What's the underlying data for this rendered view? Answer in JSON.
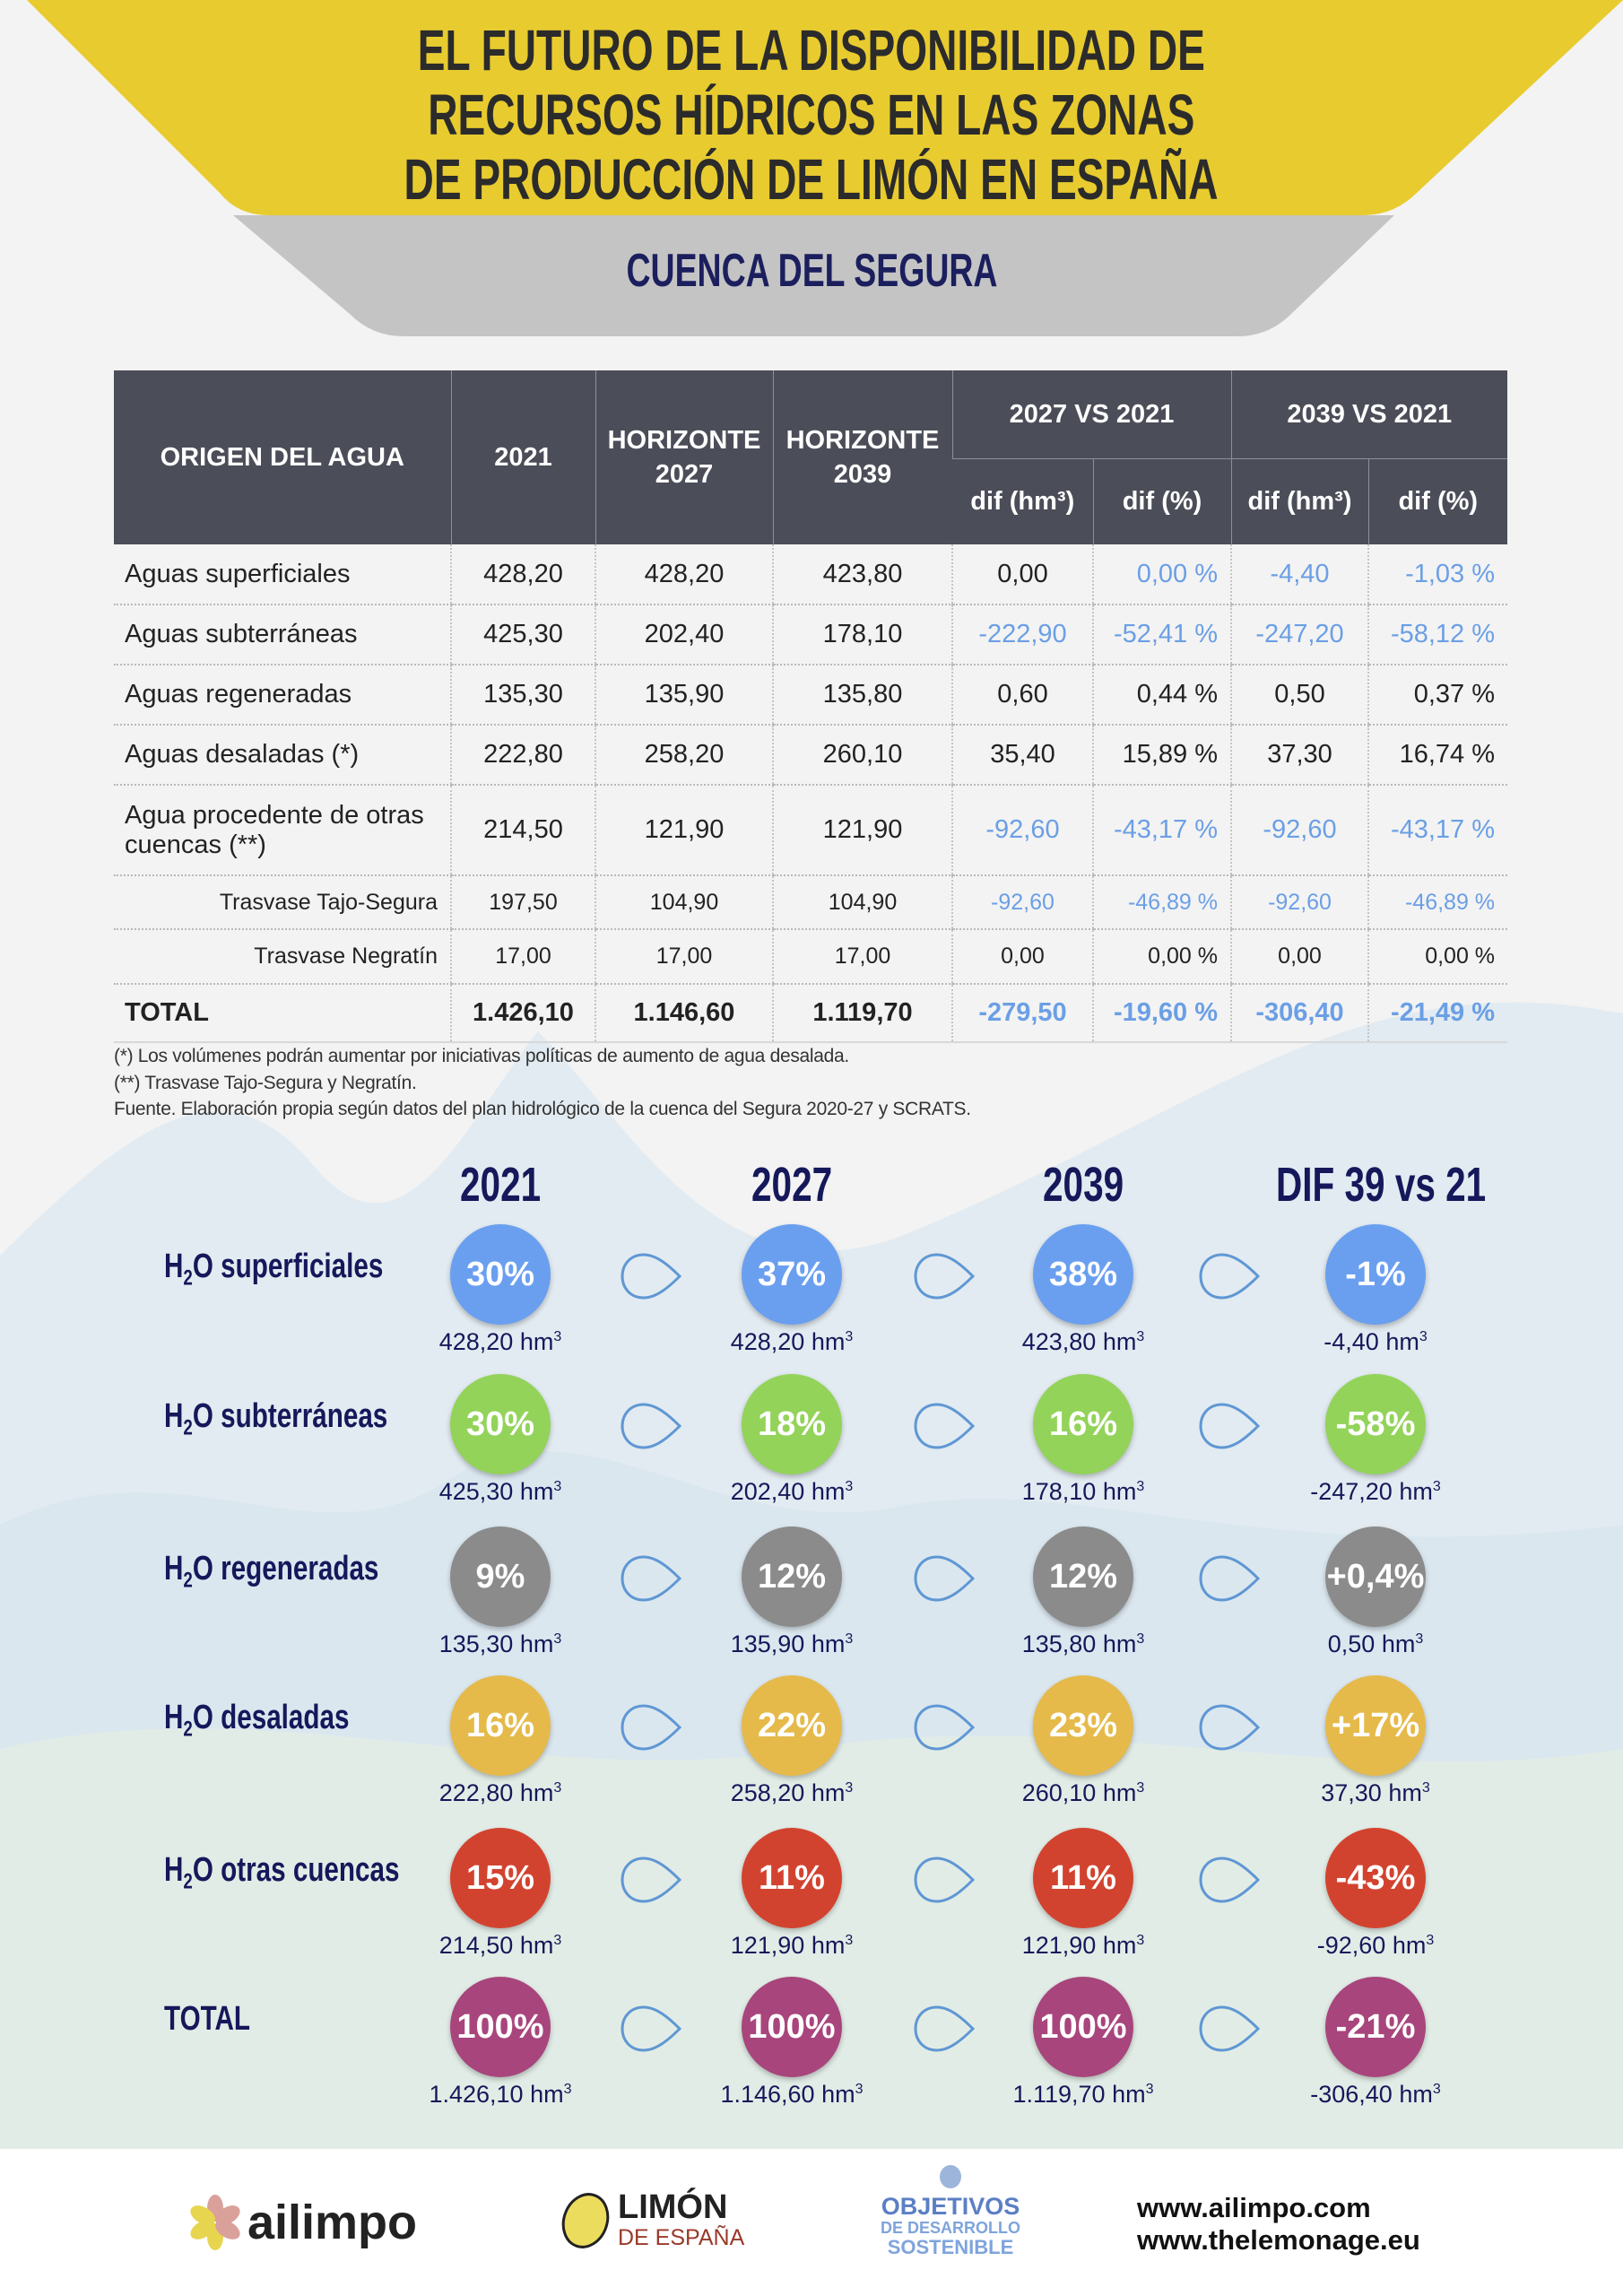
{
  "header": {
    "title_lines": [
      "EL FUTURO DE LA DISPONIBILIDAD DE",
      "RECURSOS HÍDRICOS EN LAS ZONAS",
      "DE PRODUCCIÓN DE LIMÓN EN ESPAÑA"
    ],
    "subtitle": "CUENCA DEL SEGURA",
    "colors": {
      "banner": "#e8cb2f",
      "subbanner": "#c4c4c4"
    }
  },
  "table": {
    "headers": {
      "origin": "ORIGEN DEL AGUA",
      "y2021": "2021",
      "h2027": "HORIZONTE 2027",
      "h2039": "HORIZONTE 2039",
      "cmp1": "2027 VS 2021",
      "cmp2": "2039 VS 2021",
      "dif_hm": "dif (hm³)",
      "dif_pct": "dif (%)"
    },
    "rows": [
      {
        "type": "main",
        "cells": [
          "Aguas superficiales",
          "428,20",
          "428,20",
          "423,80",
          "0,00",
          "0,00 %",
          "-4,40",
          "-1,03 %"
        ],
        "highlight": [
          false,
          false,
          false,
          false,
          false,
          true,
          true,
          true
        ]
      },
      {
        "type": "main",
        "cells": [
          "Aguas subterráneas",
          "425,30",
          "202,40",
          "178,10",
          "-222,90",
          "-52,41 %",
          "-247,20",
          "-58,12 %"
        ],
        "highlight": [
          false,
          false,
          false,
          false,
          true,
          true,
          true,
          true
        ]
      },
      {
        "type": "main",
        "cells": [
          "Aguas regeneradas",
          "135,30",
          "135,90",
          "135,80",
          "0,60",
          "0,44 %",
          "0,50",
          "0,37 %"
        ],
        "highlight": [
          false,
          false,
          false,
          false,
          false,
          false,
          false,
          false
        ]
      },
      {
        "type": "main",
        "cells": [
          "Aguas desaladas (*)",
          "222,80",
          "258,20",
          "260,10",
          "35,40",
          "15,89 %",
          "37,30",
          "16,74 %"
        ],
        "highlight": [
          false,
          false,
          false,
          false,
          false,
          false,
          false,
          false
        ]
      },
      {
        "type": "main",
        "cells": [
          "Agua procedente de otras cuencas (**)",
          "214,50",
          "121,90",
          "121,90",
          "-92,60",
          "-43,17 %",
          "-92,60",
          "-43,17 %"
        ],
        "highlight": [
          false,
          false,
          false,
          false,
          true,
          true,
          true,
          true
        ]
      },
      {
        "type": "sub",
        "cells": [
          "Trasvase Tajo-Segura",
          "197,50",
          "104,90",
          "104,90",
          "-92,60",
          "-46,89 %",
          "-92,60",
          "-46,89 %"
        ],
        "highlight": [
          false,
          false,
          false,
          false,
          true,
          true,
          true,
          true
        ]
      },
      {
        "type": "sub",
        "cells": [
          "Trasvase Negratín",
          "17,00",
          "17,00",
          "17,00",
          "0,00",
          "0,00 %",
          "0,00",
          "0,00 %"
        ],
        "highlight": [
          false,
          false,
          false,
          false,
          false,
          false,
          false,
          false
        ]
      },
      {
        "type": "total",
        "cells": [
          "TOTAL",
          "1.426,10",
          "1.146,60",
          "1.119,70",
          "-279,50",
          "-19,60 %",
          "-306,40",
          "-21,49 %"
        ],
        "highlight": [
          false,
          false,
          false,
          false,
          true,
          true,
          true,
          true
        ]
      }
    ],
    "footnotes": [
      "(*) Los volúmenes podrán aumentar por iniciativas políticas de aumento de agua desalada.",
      "(**) Trasvase Tajo-Segura y Negratín.",
      "Fuente. Elaboración propia según datos del plan hidrológico de la cuenca del Segura 2020-27 y SCRATS."
    ]
  },
  "infographic": {
    "columns": [
      "2021",
      "2027",
      "2039",
      "DIF 39 vs 21"
    ],
    "unit": "hm",
    "unit_sup": "3",
    "rows": [
      {
        "pre": "H",
        "sub": "2",
        "rest": "O superficiales",
        "color": "#6a9ff0",
        "values": [
          {
            "pct": "30%",
            "amt": "428,20"
          },
          {
            "pct": "37%",
            "amt": "428,20"
          },
          {
            "pct": "38%",
            "amt": "423,80"
          },
          {
            "pct": "-1%",
            "amt": "-4,40"
          }
        ]
      },
      {
        "pre": "H",
        "sub": "2",
        "rest": "O subterráneas",
        "color": "#93d35a",
        "values": [
          {
            "pct": "30%",
            "amt": "425,30"
          },
          {
            "pct": "18%",
            "amt": "202,40"
          },
          {
            "pct": "16%",
            "amt": "178,10"
          },
          {
            "pct": "-58%",
            "amt": "-247,20"
          }
        ]
      },
      {
        "pre": "H",
        "sub": "2",
        "rest": "O regeneradas",
        "color": "#8b8b8b",
        "values": [
          {
            "pct": "9%",
            "amt": "135,30"
          },
          {
            "pct": "12%",
            "amt": "135,90"
          },
          {
            "pct": "12%",
            "amt": "135,80"
          },
          {
            "pct": "+0,4%",
            "amt": "0,50"
          }
        ]
      },
      {
        "pre": "H",
        "sub": "2",
        "rest": "O desaladas",
        "color": "#e5ba4a",
        "values": [
          {
            "pct": "16%",
            "amt": "222,80"
          },
          {
            "pct": "22%",
            "amt": "258,20"
          },
          {
            "pct": "23%",
            "amt": "260,10"
          },
          {
            "pct": "+17%",
            "amt": "37,30"
          }
        ]
      },
      {
        "pre": "H",
        "sub": "2",
        "rest": "O otras cuencas",
        "color": "#d2432f",
        "values": [
          {
            "pct": "15%",
            "amt": "214,50"
          },
          {
            "pct": "11%",
            "amt": "121,90"
          },
          {
            "pct": "11%",
            "amt": "121,90"
          },
          {
            "pct": "-43%",
            "amt": "-92,60"
          }
        ]
      },
      {
        "pre": "",
        "sub": "",
        "rest": "TOTAL",
        "color": "#a8457c",
        "values": [
          {
            "pct": "100%",
            "amt": "1.426,10"
          },
          {
            "pct": "100%",
            "amt": "1.146,60"
          },
          {
            "pct": "100%",
            "amt": "1.119,70"
          },
          {
            "pct": "-21%",
            "amt": "-306,40"
          }
        ]
      }
    ]
  },
  "footer": {
    "ailimpo": "ailimpo",
    "limon_top": "LIMÓN",
    "limon_bottom": "DE ESPAÑA",
    "ods_lines": [
      "OBJETIVOS",
      "DE DESARROLLO",
      "SOSTENIBLE"
    ],
    "urls": [
      "www.ailimpo.com",
      "www.thelemonage.eu"
    ]
  }
}
